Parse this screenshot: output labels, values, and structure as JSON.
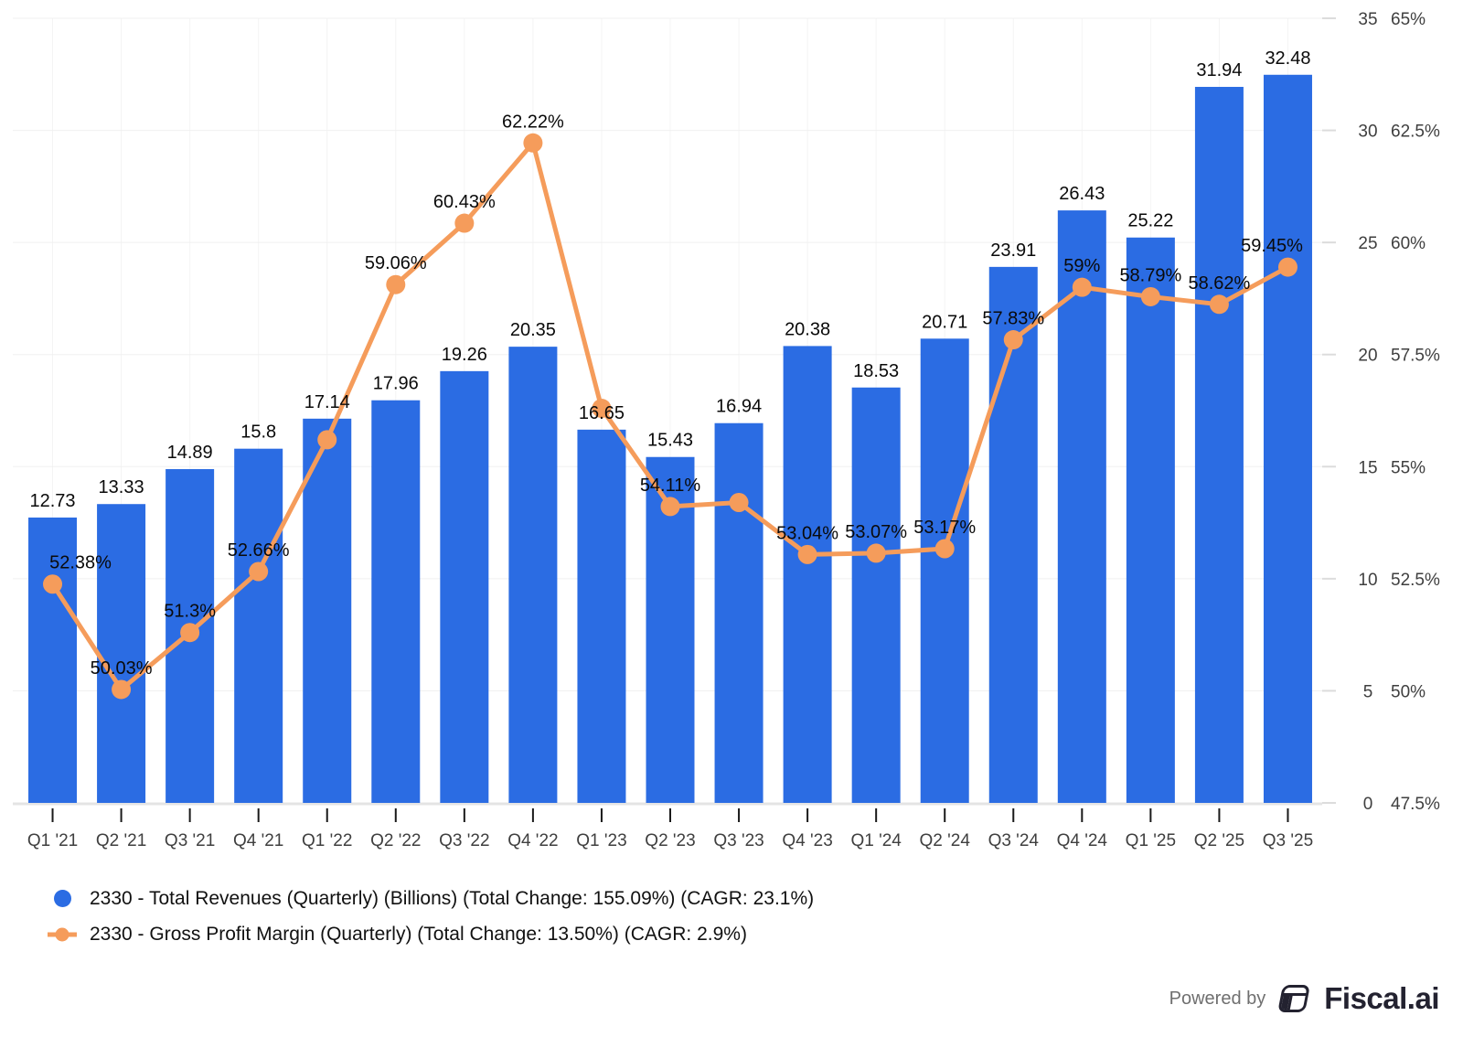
{
  "chart_data": {
    "type": "bar+line",
    "title": "",
    "categories": [
      "Q1 '21",
      "Q2 '21",
      "Q3 '21",
      "Q4 '21",
      "Q1 '22",
      "Q2 '22",
      "Q3 '22",
      "Q4 '22",
      "Q1 '23",
      "Q2 '23",
      "Q3 '23",
      "Q4 '23",
      "Q1 '24",
      "Q2 '24",
      "Q3 '24",
      "Q4 '24",
      "Q1 '25",
      "Q2 '25",
      "Q3 '25"
    ],
    "series": [
      {
        "name": "2330 - Total Revenues (Quarterly) (Billions) (Total Change: 155.09%) (CAGR: 23.1%)",
        "type": "bar",
        "axis": "revenue",
        "color": "#2B6CE3",
        "values": [
          12.73,
          13.33,
          14.89,
          15.8,
          17.14,
          17.96,
          19.26,
          20.35,
          16.65,
          15.43,
          16.94,
          20.38,
          18.53,
          20.71,
          23.91,
          26.43,
          25.22,
          31.94,
          32.48
        ],
        "value_labels": [
          "12.73",
          "13.33",
          "14.89",
          "15.8",
          "17.14",
          "17.96",
          "19.26",
          "20.35",
          "16.65",
          "15.43",
          "16.94",
          "20.38",
          "18.53",
          "20.71",
          "23.91",
          "26.43",
          "25.22",
          "31.94",
          "32.48"
        ]
      },
      {
        "name": "2330 - Gross Profit Margin (Quarterly) (Total Change: 13.50%) (CAGR: 2.9%)",
        "type": "line",
        "axis": "percent",
        "color": "#F59C5B",
        "values": [
          52.38,
          50.03,
          51.3,
          52.66,
          55.6,
          59.06,
          60.43,
          62.22,
          56.3,
          54.11,
          54.2,
          53.04,
          53.07,
          53.17,
          57.83,
          59,
          58.79,
          58.62,
          59.45
        ],
        "value_labels": [
          "52.38%",
          "50.03%",
          "51.3%",
          "52.66%",
          "",
          "59.06%",
          "60.43%",
          "62.22%",
          "",
          "54.11%",
          "",
          "53.04%",
          "53.07%",
          "53.17%",
          "57.83%",
          "59%",
          "58.79%",
          "58.62%",
          "59.45%"
        ]
      }
    ],
    "revenue_axis": {
      "side": "right",
      "min": 0,
      "max": 35,
      "ticks": [
        35,
        30,
        25,
        20,
        15,
        10,
        5,
        0
      ],
      "tick_labels": [
        "35",
        "30",
        "25",
        "20",
        "15",
        "10",
        "5",
        "0"
      ]
    },
    "percent_axis": {
      "side": "right",
      "min": 47.5,
      "max": 65,
      "ticks": [
        65,
        62.5,
        60,
        57.5,
        55,
        52.5,
        50,
        47.5
      ],
      "tick_labels": [
        "65%",
        "62.5%",
        "60%",
        "57.5%",
        "55%",
        "52.5%",
        "50%",
        "47.5%"
      ]
    },
    "grid": "both",
    "legend_position": "bottom-left"
  },
  "footer": {
    "powered_by": "Powered by",
    "brand": "Fiscal.ai"
  },
  "colors": {
    "bar": "#2B6CE3",
    "line": "#F59C5B",
    "grid_vertical": "#F4F4F4",
    "grid_horizontal": "#F0F0F0",
    "axis_line": "#E4E4E4",
    "right_tick": "#DCDCDC",
    "x_tick": "#1A1A1A",
    "axis_text": "#3F3F3F",
    "label_text": "#0A0A0A"
  }
}
